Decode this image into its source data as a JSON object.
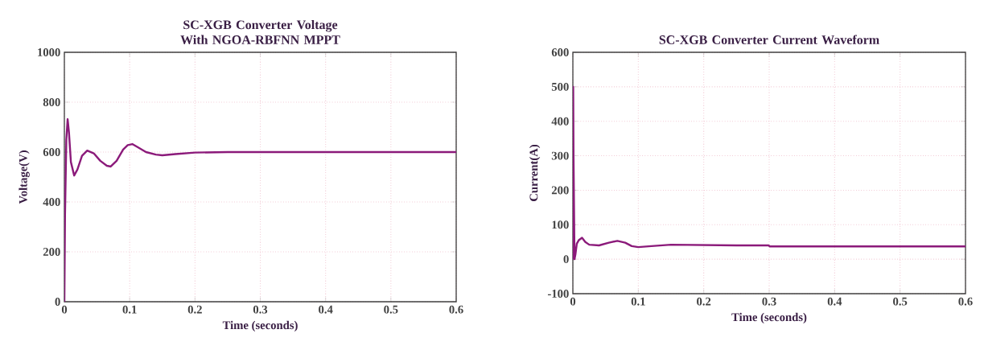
{
  "chart_data": [
    {
      "type": "line",
      "title": "SC-XGB Converter Voltage With NGOA-RBFNN MPPT",
      "xlabel": "Time (seconds)",
      "ylabel": "Voltage(V)",
      "series": [
        {
          "color": "#8b1a7a",
          "x": [
            0,
            0.001,
            0.003,
            0.005,
            0.007,
            0.01,
            0.015,
            0.02,
            0.027,
            0.035,
            0.045,
            0.055,
            0.065,
            0.071,
            0.08,
            0.09,
            0.097,
            0.104,
            0.112,
            0.125,
            0.14,
            0.15,
            0.17,
            0.2,
            0.25,
            0.3,
            0.4,
            0.5,
            0.6
          ],
          "values": [
            0,
            350,
            650,
            732,
            680,
            560,
            506,
            530,
            585,
            606,
            595,
            565,
            545,
            542,
            565,
            610,
            628,
            632,
            620,
            600,
            590,
            587,
            592,
            598,
            600,
            600,
            600,
            600,
            600
          ]
        }
      ],
      "xlim": [
        0,
        0.6
      ],
      "ylim": [
        0,
        1000
      ],
      "xticks": [
        0,
        0.1,
        0.2,
        0.3,
        0.4,
        0.5,
        0.6
      ],
      "yticks": [
        0,
        200,
        400,
        600,
        800,
        1000
      ],
      "grid": true
    },
    {
      "type": "line",
      "title": "SC-XGB Converter Current Waveform",
      "xlabel": "Time (seconds)",
      "ylabel": "Current(A)",
      "series": [
        {
          "color": "#8b1a7a",
          "x": [
            0,
            0.0005,
            0.001,
            0.0025,
            0.004,
            0.006,
            0.009,
            0.014,
            0.019,
            0.025,
            0.04,
            0.055,
            0.068,
            0.08,
            0.09,
            0.1,
            0.12,
            0.15,
            0.2,
            0.25,
            0.299,
            0.301,
            0.4,
            0.5,
            0.6
          ],
          "values": [
            0,
            500,
            300,
            0,
            15,
            45,
            55,
            62,
            50,
            42,
            40,
            48,
            53,
            48,
            38,
            35,
            38,
            42,
            41,
            40,
            40,
            37,
            37,
            37,
            37
          ]
        }
      ],
      "xlim": [
        0,
        0.6
      ],
      "ylim": [
        -100,
        600
      ],
      "xticks": [
        0,
        0.1,
        0.2,
        0.3,
        0.4,
        0.5,
        0.6
      ],
      "yticks": [
        -100,
        0,
        100,
        200,
        300,
        400,
        500,
        600
      ],
      "grid": true
    }
  ]
}
